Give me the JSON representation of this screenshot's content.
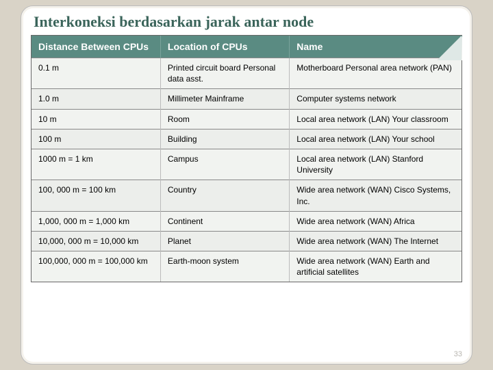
{
  "title": "Interkoneksi berdasarkan jarak antar node",
  "page_number": "33",
  "colors": {
    "page_bg": "#d9d3c7",
    "frame_bg": "#ffffff",
    "title_color": "#3a645a",
    "header_bg": "#5a8b82",
    "header_fg": "#ffffff",
    "row_bg_odd": "#f1f3f0",
    "row_bg_even": "#eceeeb",
    "border": "#888"
  },
  "table": {
    "columns": [
      "Distance Between CPUs",
      "Location of CPUs",
      "Name"
    ],
    "column_widths_pct": [
      30,
      30,
      40
    ],
    "header_fontsize": 14,
    "cell_fontsize": 12,
    "rows": [
      [
        "0.1 m",
        "Printed circuit board Personal data asst.",
        "Motherboard Personal area network (PAN)"
      ],
      [
        "1.0 m",
        "Millimeter Mainframe",
        "Computer systems network"
      ],
      [
        "10 m",
        "Room",
        "Local area network (LAN) Your classroom"
      ],
      [
        "100 m",
        "Building",
        "Local area network (LAN) Your school"
      ],
      [
        "1000 m =  1 km",
        "Campus",
        "Local area network (LAN) Stanford University"
      ],
      [
        "100, 000 m =  100 km",
        "Country",
        "Wide area network (WAN) Cisco Systems, Inc."
      ],
      [
        "1,000, 000 m =  1,000 km",
        "Continent",
        "Wide area network (WAN) Africa"
      ],
      [
        "10,000, 000 m =  10,000 km",
        "Planet",
        "Wide area network (WAN) The Internet"
      ],
      [
        "100,000, 000 m =  100,000 km",
        "Earth-moon system",
        "Wide area network (WAN) Earth and artificial satellites"
      ]
    ]
  }
}
